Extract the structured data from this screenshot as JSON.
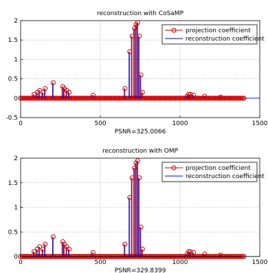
{
  "chart_data": [
    {
      "type": "stem",
      "title": "reconstruction with CoSaMP",
      "xlabel": "PSNR=325.0066",
      "xlim": [
        0,
        1500
      ],
      "ylim": [
        -0.5,
        2
      ],
      "xticks": [
        "0",
        "500",
        "1000",
        "1500"
      ],
      "yticks": [
        "-0.5",
        "0",
        "0.5",
        "1",
        "1.5",
        "2"
      ],
      "grid": true,
      "legend_position": "top-right",
      "series": [
        {
          "name": "projection coefficient",
          "marker": "circle",
          "color": "#cc0000",
          "x": [
            80,
            100,
            115,
            135,
            150,
            200,
            260,
            270,
            285,
            300,
            450,
            650,
            680,
            695,
            710,
            720,
            730,
            740,
            750,
            760,
            1040,
            1050,
            1060,
            1080,
            1150,
            1250
          ],
          "y": [
            0.1,
            0.15,
            0.2,
            0.15,
            0.25,
            0.4,
            0.3,
            0.25,
            0.2,
            0.15,
            0.08,
            0.25,
            1.2,
            1.6,
            1.8,
            1.9,
            1.95,
            1.6,
            0.6,
            0.15,
            0.05,
            0.1,
            0.1,
            0.08,
            0.05,
            0.03
          ]
        },
        {
          "name": "reconstruction coefficient",
          "marker": "none",
          "color": "#0000cc",
          "x": [
            80,
            100,
            115,
            135,
            150,
            200,
            260,
            270,
            285,
            300,
            450,
            650,
            680,
            695,
            710,
            720,
            730,
            740,
            750,
            760,
            1040,
            1050,
            1060,
            1080,
            1150,
            1250
          ],
          "y": [
            0.1,
            0.15,
            0.2,
            0.15,
            0.25,
            0.4,
            0.3,
            0.25,
            0.2,
            0.15,
            0.08,
            0.25,
            1.2,
            1.6,
            1.8,
            1.9,
            1.95,
            1.6,
            0.6,
            0.15,
            0.05,
            0.1,
            0.1,
            0.08,
            0.05,
            0.03
          ]
        }
      ]
    },
    {
      "type": "stem",
      "title": "reconstruction with OMP",
      "xlabel": "PSNR=329.8399",
      "xlim": [
        0,
        1500
      ],
      "ylim": [
        0,
        2
      ],
      "xticks": [
        "0",
        "500",
        "1000",
        "1500"
      ],
      "yticks": [
        "0",
        "0.5",
        "1",
        "1.5",
        "2"
      ],
      "grid": true,
      "legend_position": "top-right",
      "series": [
        {
          "name": "projection coefficient",
          "marker": "circle",
          "color": "#cc0000",
          "x": [
            80,
            100,
            115,
            135,
            150,
            200,
            260,
            270,
            285,
            300,
            450,
            650,
            680,
            695,
            710,
            720,
            730,
            740,
            750,
            760,
            1040,
            1050,
            1060,
            1080,
            1150,
            1250
          ],
          "y": [
            0.1,
            0.15,
            0.2,
            0.15,
            0.25,
            0.4,
            0.3,
            0.25,
            0.2,
            0.15,
            0.08,
            0.25,
            1.2,
            1.6,
            1.8,
            1.9,
            1.95,
            1.6,
            0.6,
            0.15,
            0.05,
            0.1,
            0.1,
            0.08,
            0.05,
            0.03
          ]
        },
        {
          "name": "reconstruction coefficient",
          "marker": "none",
          "color": "#0000cc",
          "x": [
            80,
            100,
            115,
            135,
            150,
            200,
            260,
            270,
            285,
            300,
            450,
            650,
            680,
            695,
            710,
            720,
            730,
            740,
            750,
            760,
            1040,
            1050,
            1060,
            1080,
            1150,
            1250
          ],
          "y": [
            0.1,
            0.15,
            0.2,
            0.15,
            0.25,
            0.4,
            0.3,
            0.25,
            0.2,
            0.15,
            0.08,
            0.25,
            1.2,
            1.6,
            1.8,
            1.9,
            1.95,
            1.6,
            0.6,
            0.15,
            0.05,
            0.1,
            0.1,
            0.08,
            0.05,
            0.03
          ]
        }
      ]
    }
  ]
}
